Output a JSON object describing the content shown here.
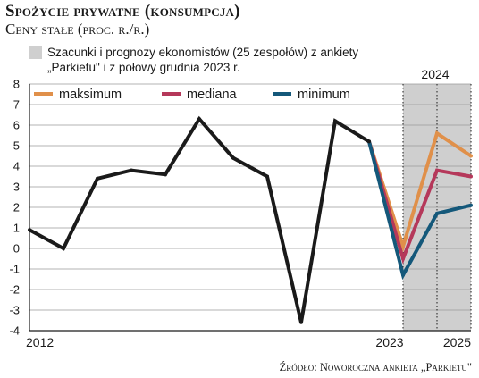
{
  "header": {
    "title": "Spożycie prywatne (konsumpcja)",
    "subtitle": "Ceny stałe (proc. r./r.)"
  },
  "note": {
    "text": "Szacunki i prognozy ekonomistów (25 zespołów) z ankiety „Parkietu\" i z połowy grudnia 2023 r.",
    "color": "#cfcfcf"
  },
  "source": "Źródło: Noworoczna ankieta „Parkietu\"",
  "chart_data": {
    "type": "line",
    "title": "Spożycie prywatne (konsumpcja)",
    "subtitle": "Ceny stałe (proc. r./r.)",
    "ylim": [
      -4,
      8
    ],
    "yticks": [
      -4,
      -3,
      -2,
      -1,
      0,
      1,
      2,
      3,
      4,
      5,
      6,
      7,
      8
    ],
    "grid": true,
    "x_range": [
      0,
      13
    ],
    "x_labels": [
      {
        "x": 0,
        "text": "2012"
      },
      {
        "x": 11,
        "text": "2023"
      },
      {
        "x": 13,
        "text": "2025"
      }
    ],
    "shaded_region": {
      "from": 11,
      "to": 13,
      "label": "2024",
      "color": "#cfcfcf"
    },
    "series": [
      {
        "name": "",
        "color": "#1a1a1a",
        "x": [
          0,
          1,
          2,
          3,
          4,
          5,
          6,
          7,
          8,
          9,
          10
        ],
        "values": [
          0.9,
          0.0,
          3.4,
          3.8,
          3.6,
          6.3,
          4.4,
          3.5,
          -3.6,
          6.2,
          5.2
        ]
      },
      {
        "name": "maksimum",
        "color": "#e0904a",
        "x": [
          10,
          11,
          12,
          13
        ],
        "values": [
          5.2,
          0.1,
          5.6,
          4.5
        ]
      },
      {
        "name": "mediana",
        "color": "#b5385a",
        "x": [
          10,
          11,
          12,
          13
        ],
        "values": [
          5.2,
          -0.5,
          3.8,
          3.5
        ]
      },
      {
        "name": "minimum",
        "color": "#14587a",
        "x": [
          10,
          11,
          12,
          13
        ],
        "values": [
          5.2,
          -1.3,
          1.7,
          2.1
        ]
      }
    ],
    "legend_position": "top"
  }
}
